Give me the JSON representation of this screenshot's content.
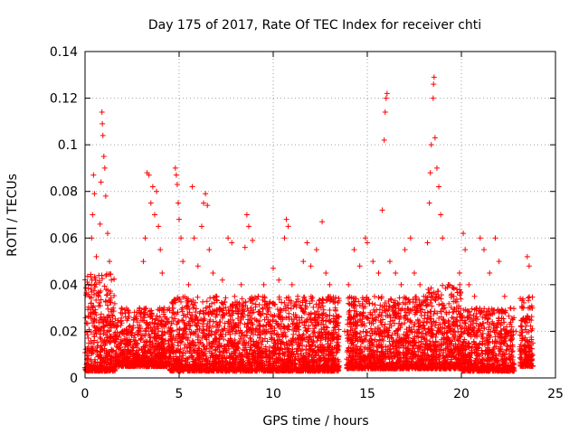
{
  "chart_data": {
    "type": "scatter",
    "title": "Day 175 of 2017, Rate Of TEC Index for receiver chti",
    "xlabel": "GPS time / hours",
    "ylabel": "ROTI / TECUs",
    "xlim": [
      0,
      25
    ],
    "ylim": [
      0,
      0.14
    ],
    "xticks": [
      0,
      5,
      10,
      15,
      20,
      25
    ],
    "xtick_labels": [
      "0",
      "5",
      "10",
      "15",
      "20",
      "25"
    ],
    "yticks": [
      0,
      0.02,
      0.04,
      0.06,
      0.08,
      0.1,
      0.12,
      0.14
    ],
    "ytick_labels": [
      "0",
      "0.02",
      "0.04",
      "0.06",
      "0.08",
      "0.1",
      "0.12",
      "0.14"
    ],
    "grid": true,
    "marker": "+",
    "color": "#ff0000",
    "series": [
      {
        "points": [
          [
            0.1,
            0.008
          ],
          [
            0.2,
            0.015
          ],
          [
            0.3,
            0.028
          ],
          [
            0.35,
            0.06
          ],
          [
            0.4,
            0.07
          ],
          [
            0.45,
            0.087
          ],
          [
            0.5,
            0.079
          ],
          [
            0.55,
            0.042
          ],
          [
            0.6,
            0.052
          ],
          [
            0.7,
            0.035
          ],
          [
            0.8,
            0.066
          ],
          [
            0.85,
            0.084
          ],
          [
            0.9,
            0.114
          ],
          [
            0.92,
            0.109
          ],
          [
            0.95,
            0.104
          ],
          [
            1.0,
            0.095
          ],
          [
            1.05,
            0.09
          ],
          [
            1.1,
            0.078
          ],
          [
            1.2,
            0.062
          ],
          [
            1.3,
            0.05
          ],
          [
            1.4,
            0.042
          ],
          [
            1.5,
            0.03
          ],
          [
            1.7,
            0.022
          ],
          [
            2.0,
            0.02
          ],
          [
            2.3,
            0.028
          ],
          [
            2.6,
            0.025
          ],
          [
            2.9,
            0.03
          ],
          [
            3.1,
            0.05
          ],
          [
            3.2,
            0.06
          ],
          [
            3.3,
            0.088
          ],
          [
            3.4,
            0.087
          ],
          [
            3.5,
            0.075
          ],
          [
            3.6,
            0.082
          ],
          [
            3.7,
            0.07
          ],
          [
            3.8,
            0.08
          ],
          [
            3.9,
            0.065
          ],
          [
            4.0,
            0.055
          ],
          [
            4.1,
            0.045
          ],
          [
            4.2,
            0.03
          ],
          [
            4.6,
            0.02
          ],
          [
            4.8,
            0.09
          ],
          [
            4.85,
            0.087
          ],
          [
            4.9,
            0.083
          ],
          [
            4.95,
            0.075
          ],
          [
            5.0,
            0.068
          ],
          [
            5.1,
            0.06
          ],
          [
            5.2,
            0.05
          ],
          [
            5.5,
            0.04
          ],
          [
            5.7,
            0.082
          ],
          [
            5.8,
            0.06
          ],
          [
            6.0,
            0.048
          ],
          [
            6.2,
            0.065
          ],
          [
            6.3,
            0.075
          ],
          [
            6.4,
            0.079
          ],
          [
            6.5,
            0.074
          ],
          [
            6.6,
            0.055
          ],
          [
            6.8,
            0.045
          ],
          [
            7.0,
            0.035
          ],
          [
            7.3,
            0.042
          ],
          [
            7.6,
            0.06
          ],
          [
            7.8,
            0.058
          ],
          [
            8.0,
            0.03
          ],
          [
            8.3,
            0.04
          ],
          [
            8.5,
            0.056
          ],
          [
            8.6,
            0.07
          ],
          [
            8.7,
            0.065
          ],
          [
            8.9,
            0.059
          ],
          [
            9.2,
            0.035
          ],
          [
            9.5,
            0.04
          ],
          [
            9.8,
            0.03
          ],
          [
            10.0,
            0.047
          ],
          [
            10.3,
            0.042
          ],
          [
            10.6,
            0.06
          ],
          [
            10.7,
            0.068
          ],
          [
            10.8,
            0.065
          ],
          [
            11.0,
            0.04
          ],
          [
            11.3,
            0.035
          ],
          [
            11.6,
            0.05
          ],
          [
            11.8,
            0.058
          ],
          [
            12.0,
            0.048
          ],
          [
            12.3,
            0.055
          ],
          [
            12.6,
            0.067
          ],
          [
            12.8,
            0.045
          ],
          [
            13.0,
            0.04
          ],
          [
            13.3,
            0.03
          ],
          [
            13.8,
            0.02
          ],
          [
            14.0,
            0.04
          ],
          [
            14.3,
            0.055
          ],
          [
            14.6,
            0.048
          ],
          [
            14.9,
            0.06
          ],
          [
            15.0,
            0.058
          ],
          [
            15.3,
            0.05
          ],
          [
            15.6,
            0.045
          ],
          [
            15.8,
            0.072
          ],
          [
            15.9,
            0.102
          ],
          [
            15.95,
            0.114
          ],
          [
            16.0,
            0.12
          ],
          [
            16.05,
            0.122
          ],
          [
            16.2,
            0.05
          ],
          [
            16.5,
            0.045
          ],
          [
            16.8,
            0.04
          ],
          [
            17.0,
            0.055
          ],
          [
            17.3,
            0.06
          ],
          [
            17.5,
            0.045
          ],
          [
            17.8,
            0.04
          ],
          [
            18.0,
            0.035
          ],
          [
            18.2,
            0.058
          ],
          [
            18.3,
            0.075
          ],
          [
            18.35,
            0.088
          ],
          [
            18.4,
            0.1
          ],
          [
            18.5,
            0.12
          ],
          [
            18.52,
            0.126
          ],
          [
            18.55,
            0.129
          ],
          [
            18.6,
            0.103
          ],
          [
            18.7,
            0.09
          ],
          [
            18.8,
            0.082
          ],
          [
            18.9,
            0.07
          ],
          [
            19.0,
            0.06
          ],
          [
            19.3,
            0.04
          ],
          [
            19.6,
            0.035
          ],
          [
            19.9,
            0.045
          ],
          [
            20.1,
            0.062
          ],
          [
            20.2,
            0.055
          ],
          [
            20.4,
            0.04
          ],
          [
            20.7,
            0.035
          ],
          [
            21.0,
            0.06
          ],
          [
            21.2,
            0.055
          ],
          [
            21.5,
            0.045
          ],
          [
            21.8,
            0.06
          ],
          [
            22.0,
            0.05
          ],
          [
            22.3,
            0.035
          ],
          [
            22.6,
            0.03
          ],
          [
            22.9,
            0.02
          ],
          [
            23.3,
            0.03
          ],
          [
            23.5,
            0.052
          ],
          [
            23.6,
            0.048
          ],
          [
            23.7,
            0.03
          ],
          [
            23.8,
            0.015
          ]
        ]
      }
    ],
    "dense_bands": [
      {
        "x": [
          0.0,
          1.6
        ],
        "y": [
          0.003,
          0.045
        ]
      },
      {
        "x": [
          1.6,
          4.5
        ],
        "y": [
          0.005,
          0.03
        ]
      },
      {
        "x": [
          4.5,
          13.5
        ],
        "y": [
          0.003,
          0.035
        ]
      },
      {
        "x": [
          13.9,
          18.2
        ],
        "y": [
          0.004,
          0.035
        ]
      },
      {
        "x": [
          18.2,
          20.0
        ],
        "y": [
          0.004,
          0.04
        ]
      },
      {
        "x": [
          20.0,
          22.8
        ],
        "y": [
          0.003,
          0.03
        ]
      },
      {
        "x": [
          23.1,
          23.8
        ],
        "y": [
          0.005,
          0.035
        ]
      }
    ]
  }
}
